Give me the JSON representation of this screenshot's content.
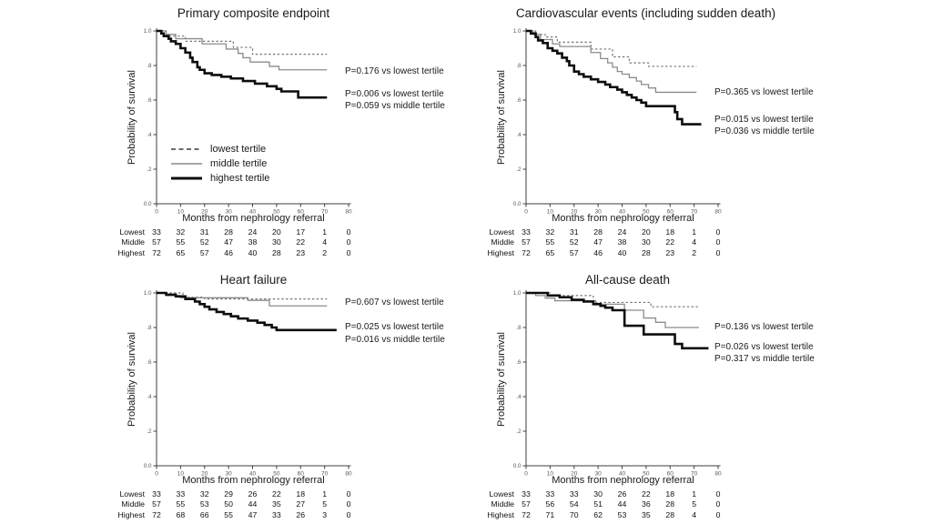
{
  "figure": {
    "background": "#ffffff",
    "ylabel": "Probability of survival",
    "xlabel": "Months from nephrology referral",
    "yticks": [
      "1.0",
      ".8",
      ".6",
      ".4",
      ".2",
      "0.0"
    ],
    "ytick_values": [
      1.0,
      0.8,
      0.6,
      0.4,
      0.2,
      0.0
    ],
    "xticks": [
      0,
      10,
      20,
      30,
      40,
      50,
      60,
      70,
      80
    ],
    "risk_row_labels": [
      "Lowest",
      "Middle",
      "Highest"
    ],
    "legend": [
      {
        "label": "lowest tertile",
        "style": "dashed"
      },
      {
        "label": "middle tertile",
        "style": "thin"
      },
      {
        "label": "highest tertile",
        "style": "thick"
      }
    ],
    "colors": {
      "axis": "#3f3f3f",
      "tick_text": "#595959",
      "text": "#1a1a1a",
      "dashed_line": "#757575",
      "thin_line": "#8c8c8c",
      "thick_line": "#0d0d0d"
    }
  },
  "chart_data": [
    {
      "type": "line",
      "title": "Primary composite endpoint",
      "xlabel": "Months from nephrology referral",
      "ylabel": "Probability of survival",
      "xlim": [
        0,
        80
      ],
      "ylim": [
        0.0,
        1.0
      ],
      "show_legend": true,
      "series": [
        {
          "name": "lowest tertile",
          "style": "dashed",
          "end_month": 71,
          "steps": [
            [
              0,
              1.0
            ],
            [
              4,
              0.97
            ],
            [
              12,
              0.94
            ],
            [
              32,
              0.905
            ],
            [
              40,
              0.865
            ]
          ]
        },
        {
          "name": "middle tertile",
          "style": "thin",
          "end_month": 71,
          "steps": [
            [
              0,
              1.0
            ],
            [
              4,
              0.98
            ],
            [
              8,
              0.955
            ],
            [
              19,
              0.925
            ],
            [
              29,
              0.895
            ],
            [
              34,
              0.87
            ],
            [
              36,
              0.845
            ],
            [
              39,
              0.82
            ],
            [
              47,
              0.795
            ],
            [
              51,
              0.775
            ]
          ]
        },
        {
          "name": "highest tertile",
          "style": "thick",
          "end_month": 71,
          "steps": [
            [
              0,
              1.0
            ],
            [
              2,
              0.985
            ],
            [
              3,
              0.97
            ],
            [
              5,
              0.955
            ],
            [
              6,
              0.94
            ],
            [
              8,
              0.925
            ],
            [
              10,
              0.9
            ],
            [
              12,
              0.875
            ],
            [
              14,
              0.845
            ],
            [
              15,
              0.82
            ],
            [
              17,
              0.79
            ],
            [
              18,
              0.775
            ],
            [
              20,
              0.755
            ],
            [
              23,
              0.745
            ],
            [
              27,
              0.735
            ],
            [
              31,
              0.725
            ],
            [
              36,
              0.71
            ],
            [
              41,
              0.695
            ],
            [
              46,
              0.68
            ],
            [
              50,
              0.665
            ],
            [
              52,
              0.65
            ],
            [
              59,
              0.615
            ]
          ]
        }
      ],
      "annotations": [
        {
          "text": "P=0.176 vs lowest tertile",
          "prob": 0.765
        },
        {
          "text": "P=0.006 vs lowest tertile",
          "prob": 0.63
        },
        {
          "text": "P=0.059 vs middle tertile",
          "prob": 0.562
        }
      ],
      "numbers_at_risk": [
        [
          33,
          32,
          31,
          28,
          24,
          20,
          17,
          1,
          0
        ],
        [
          57,
          55,
          52,
          47,
          38,
          30,
          22,
          4,
          0
        ],
        [
          72,
          65,
          57,
          46,
          40,
          28,
          23,
          2,
          0
        ]
      ]
    },
    {
      "type": "line",
      "title": "Cardiovascular events (including sudden death)",
      "xlabel": "Months from nephrology referral",
      "ylabel": "Probability of survival",
      "xlim": [
        0,
        80
      ],
      "ylim": [
        0.0,
        1.0
      ],
      "show_legend": false,
      "series": [
        {
          "name": "lowest tertile",
          "style": "dashed",
          "end_month": 71,
          "steps": [
            [
              0,
              1.0
            ],
            [
              4,
              0.98
            ],
            [
              8,
              0.965
            ],
            [
              13,
              0.935
            ],
            [
              27,
              0.895
            ],
            [
              36,
              0.85
            ],
            [
              43,
              0.815
            ],
            [
              51,
              0.795
            ]
          ]
        },
        {
          "name": "middle tertile",
          "style": "thin",
          "end_month": 71,
          "steps": [
            [
              0,
              1.0
            ],
            [
              3,
              0.98
            ],
            [
              6,
              0.95
            ],
            [
              11,
              0.925
            ],
            [
              14,
              0.91
            ],
            [
              27,
              0.875
            ],
            [
              31,
              0.84
            ],
            [
              34,
              0.815
            ],
            [
              36,
              0.79
            ],
            [
              38,
              0.765
            ],
            [
              40,
              0.75
            ],
            [
              43,
              0.73
            ],
            [
              46,
              0.71
            ],
            [
              48,
              0.69
            ],
            [
              51,
              0.67
            ],
            [
              54,
              0.645
            ]
          ]
        },
        {
          "name": "highest tertile",
          "style": "thick",
          "end_month": 73,
          "steps": [
            [
              0,
              1.0
            ],
            [
              2,
              0.985
            ],
            [
              4,
              0.965
            ],
            [
              5,
              0.945
            ],
            [
              7,
              0.93
            ],
            [
              9,
              0.9
            ],
            [
              11,
              0.885
            ],
            [
              13,
              0.87
            ],
            [
              15,
              0.845
            ],
            [
              17,
              0.825
            ],
            [
              18,
              0.8
            ],
            [
              20,
              0.765
            ],
            [
              22,
              0.75
            ],
            [
              24,
              0.735
            ],
            [
              27,
              0.72
            ],
            [
              30,
              0.705
            ],
            [
              33,
              0.69
            ],
            [
              35,
              0.675
            ],
            [
              38,
              0.66
            ],
            [
              40,
              0.645
            ],
            [
              42,
              0.63
            ],
            [
              44,
              0.615
            ],
            [
              46,
              0.6
            ],
            [
              48,
              0.585
            ],
            [
              50,
              0.565
            ],
            [
              62,
              0.53
            ],
            [
              63,
              0.49
            ],
            [
              65,
              0.46
            ]
          ]
        }
      ],
      "annotations": [
        {
          "text": "P=0.365 vs lowest tertile",
          "prob": 0.64
        },
        {
          "text": "P=0.015 vs lowest tertile",
          "prob": 0.485
        },
        {
          "text": "P=0.036 vs middle tertile",
          "prob": 0.415
        }
      ],
      "numbers_at_risk": [
        [
          33,
          32,
          31,
          28,
          24,
          20,
          18,
          1,
          0
        ],
        [
          57,
          55,
          52,
          47,
          38,
          30,
          22,
          4,
          0
        ],
        [
          72,
          65,
          57,
          46,
          40,
          28,
          23,
          2,
          0
        ]
      ]
    },
    {
      "type": "line",
      "title": "Heart failure",
      "xlabel": "Months from nephrology referral",
      "ylabel": "Probability of survival",
      "xlim": [
        0,
        80
      ],
      "ylim": [
        0.0,
        1.0
      ],
      "show_legend": false,
      "series": [
        {
          "name": "lowest tertile",
          "style": "dashed",
          "end_month": 71,
          "steps": [
            [
              0,
              1.0
            ],
            [
              11,
              0.975
            ],
            [
              20,
              0.965
            ]
          ]
        },
        {
          "name": "middle tertile",
          "style": "thin",
          "end_month": 71,
          "steps": [
            [
              0,
              1.0
            ],
            [
              4,
              0.985
            ],
            [
              10,
              0.972
            ],
            [
              38,
              0.957
            ],
            [
              47,
              0.925
            ]
          ]
        },
        {
          "name": "highest tertile",
          "style": "thick",
          "end_month": 75,
          "steps": [
            [
              0,
              1.0
            ],
            [
              4,
              0.99
            ],
            [
              8,
              0.98
            ],
            [
              12,
              0.965
            ],
            [
              16,
              0.95
            ],
            [
              18,
              0.935
            ],
            [
              20,
              0.92
            ],
            [
              22,
              0.905
            ],
            [
              25,
              0.89
            ],
            [
              28,
              0.878
            ],
            [
              31,
              0.865
            ],
            [
              34,
              0.852
            ],
            [
              38,
              0.84
            ],
            [
              42,
              0.828
            ],
            [
              45,
              0.815
            ],
            [
              48,
              0.8
            ],
            [
              50,
              0.785
            ]
          ]
        }
      ],
      "annotations": [
        {
          "text": "P=0.607 vs lowest tertile",
          "prob": 0.94
        },
        {
          "text": "P=0.025 vs lowest tertile",
          "prob": 0.8
        },
        {
          "text": "P=0.016 vs middle tertile",
          "prob": 0.728
        }
      ],
      "numbers_at_risk": [
        [
          33,
          33,
          32,
          29,
          26,
          22,
          18,
          1,
          0
        ],
        [
          57,
          55,
          53,
          50,
          44,
          35,
          27,
          5,
          0
        ],
        [
          72,
          68,
          66,
          55,
          47,
          33,
          26,
          3,
          0
        ]
      ]
    },
    {
      "type": "line",
      "title": "All-cause death",
      "xlabel": "Months from nephrology referral",
      "ylabel": "Probability of survival",
      "xlim": [
        0,
        80
      ],
      "ylim": [
        0.0,
        1.0
      ],
      "show_legend": false,
      "series": [
        {
          "name": "lowest tertile",
          "style": "dashed",
          "end_month": 72,
          "steps": [
            [
              0,
              1.0
            ],
            [
              10,
              0.985
            ],
            [
              28,
              0.945
            ],
            [
              52,
              0.92
            ]
          ]
        },
        {
          "name": "middle tertile",
          "style": "thin",
          "end_month": 72,
          "steps": [
            [
              0,
              1.0
            ],
            [
              4,
              0.985
            ],
            [
              8,
              0.97
            ],
            [
              12,
              0.955
            ],
            [
              29,
              0.935
            ],
            [
              41,
              0.9
            ],
            [
              49,
              0.855
            ],
            [
              54,
              0.83
            ],
            [
              58,
              0.8
            ]
          ]
        },
        {
          "name": "highest tertile",
          "style": "thick",
          "end_month": 76,
          "steps": [
            [
              0,
              1.0
            ],
            [
              9,
              0.985
            ],
            [
              14,
              0.975
            ],
            [
              19,
              0.96
            ],
            [
              24,
              0.95
            ],
            [
              28,
              0.935
            ],
            [
              31,
              0.925
            ],
            [
              33,
              0.915
            ],
            [
              36,
              0.9
            ],
            [
              41,
              0.81
            ],
            [
              49,
              0.76
            ],
            [
              62,
              0.705
            ],
            [
              65,
              0.68
            ]
          ]
        }
      ],
      "annotations": [
        {
          "text": "P=0.136 vs lowest tertile",
          "prob": 0.8
        },
        {
          "text": "P=0.026 vs lowest tertile",
          "prob": 0.685
        },
        {
          "text": "P=0.317 vs middle tertile",
          "prob": 0.615
        }
      ],
      "numbers_at_risk": [
        [
          33,
          33,
          33,
          30,
          26,
          22,
          18,
          1,
          0
        ],
        [
          57,
          56,
          54,
          51,
          44,
          36,
          28,
          5,
          0
        ],
        [
          72,
          71,
          70,
          62,
          53,
          35,
          28,
          4,
          0
        ]
      ]
    }
  ]
}
